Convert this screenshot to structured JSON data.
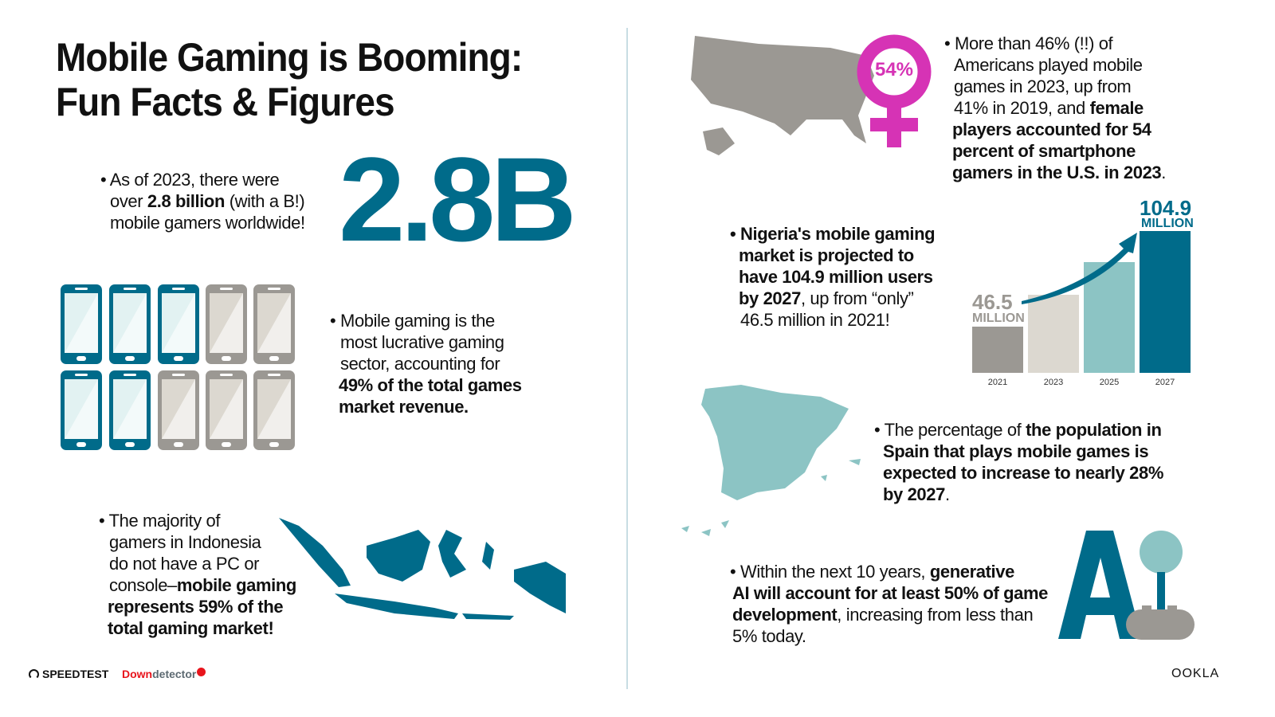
{
  "title": {
    "line1": "Mobile Gaming is Booming:",
    "line2": "Fun Facts & Figures"
  },
  "fact_gamers": {
    "pre": "• As of 2023, there were",
    "l2a": "over ",
    "l2b": "2.8 billion",
    "l2c": " (with a B!)",
    "l3": "mobile gamers worldwide!",
    "big": "2.8B"
  },
  "fact_revenue": {
    "l1": "• Mobile gaming is the",
    "l2": "most lucrative gaming",
    "l3": "sector, accounting for",
    "l4": "49% of the total games",
    "l5": "market revenue.",
    "phones_teal": 5,
    "phones_total": 10
  },
  "fact_indonesia": {
    "l1": "• The majority of",
    "l2": "gamers in Indonesia",
    "l3": "do not have a PC or",
    "l4a": "console–",
    "l4b": "mobile gaming",
    "l5": "represents 59% of the",
    "l6": "total gaming market!"
  },
  "fact_us": {
    "badge": "54%",
    "l1": "• More than 46% (!!) of",
    "l2": "Americans played mobile",
    "l3": "games in 2023, up from",
    "l4a": "41% in 2019, and ",
    "l4b": "female",
    "l5": "players accounted for 54",
    "l6": "percent of smartphone",
    "l7": "gamers in the U.S. in 2023",
    "l7end": "."
  },
  "fact_nigeria": {
    "l1": "• Nigeria's mobile gaming",
    "l2": "market is projected to",
    "l3": "have 104.9 million users",
    "l4a": "by 2027",
    "l4b": ", up from “only”",
    "l5": "46.5 million in 2021!"
  },
  "chart_data": {
    "type": "bar",
    "categories": [
      "2021",
      "2023",
      "2025",
      "2027"
    ],
    "values": [
      46.5,
      66,
      86,
      104.9
    ],
    "unit": "MILLION",
    "labels": [
      {
        "value": "46.5",
        "unit": "MILLION"
      },
      {
        "value": "104.9",
        "unit": "MILLION"
      }
    ],
    "colors": [
      "#9b9893",
      "#dcd8d0",
      "#8cc4c4",
      "#006b8a"
    ],
    "grid": false
  },
  "fact_spain": {
    "l1a": "• The percentage of ",
    "l1b": "the population in",
    "l2": "Spain that plays mobile games is",
    "l3": "expected to increase to nearly 28%",
    "l4a": "by 2027",
    "l4b": "."
  },
  "fact_ai": {
    "l1a": "• Within the next 10 years, ",
    "l1b": "generative",
    "l2": "AI will account for at least 50% of game",
    "l3a": "development",
    "l3b": ", increasing from less than",
    "l4": "5% today.",
    "logo": "AI"
  },
  "footer": {
    "speedtest": "SPEEDTEST",
    "down": "Down",
    "detector": "detector",
    "ookla": "OOKLA"
  },
  "colors": {
    "teal_dark": "#006b8a",
    "teal_light": "#8cc4c4",
    "gray": "#9b9893",
    "magenta": "#d633b5"
  }
}
